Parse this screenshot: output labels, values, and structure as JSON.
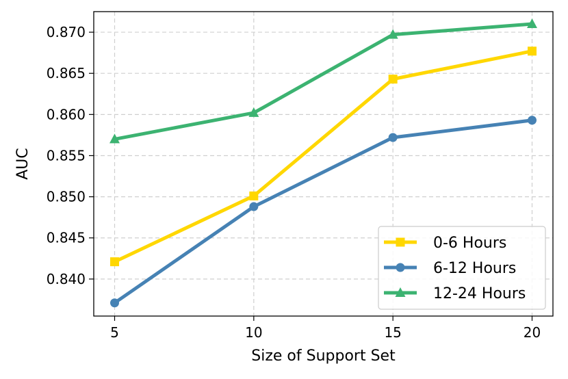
{
  "chart_data": {
    "type": "line",
    "x": [
      5,
      10,
      15,
      20
    ],
    "xlabel": "Size of Support Set",
    "ylabel": "AUC",
    "xlim": [
      4.25,
      20.75
    ],
    "ylim": [
      0.8355,
      0.8725
    ],
    "xticks": [
      "5",
      "10",
      "15",
      "20"
    ],
    "yticks": [
      "0.840",
      "0.845",
      "0.850",
      "0.855",
      "0.860",
      "0.865",
      "0.870"
    ],
    "ytick_values": [
      0.84,
      0.845,
      0.85,
      0.855,
      0.86,
      0.865,
      0.87
    ],
    "grid": true,
    "legend_position": "lower-right",
    "series": [
      {
        "name": "0-6 Hours",
        "values": [
          0.8421,
          0.8501,
          0.8643,
          0.8677
        ],
        "color": "#FFD700",
        "marker": "square"
      },
      {
        "name": "6-12 Hours",
        "values": [
          0.8371,
          0.8488,
          0.8572,
          0.8593
        ],
        "color": "#4682B4",
        "marker": "circle"
      },
      {
        "name": "12-24 Hours",
        "values": [
          0.857,
          0.8602,
          0.8697,
          0.871
        ],
        "color": "#3CB371",
        "marker": "triangle"
      }
    ]
  }
}
